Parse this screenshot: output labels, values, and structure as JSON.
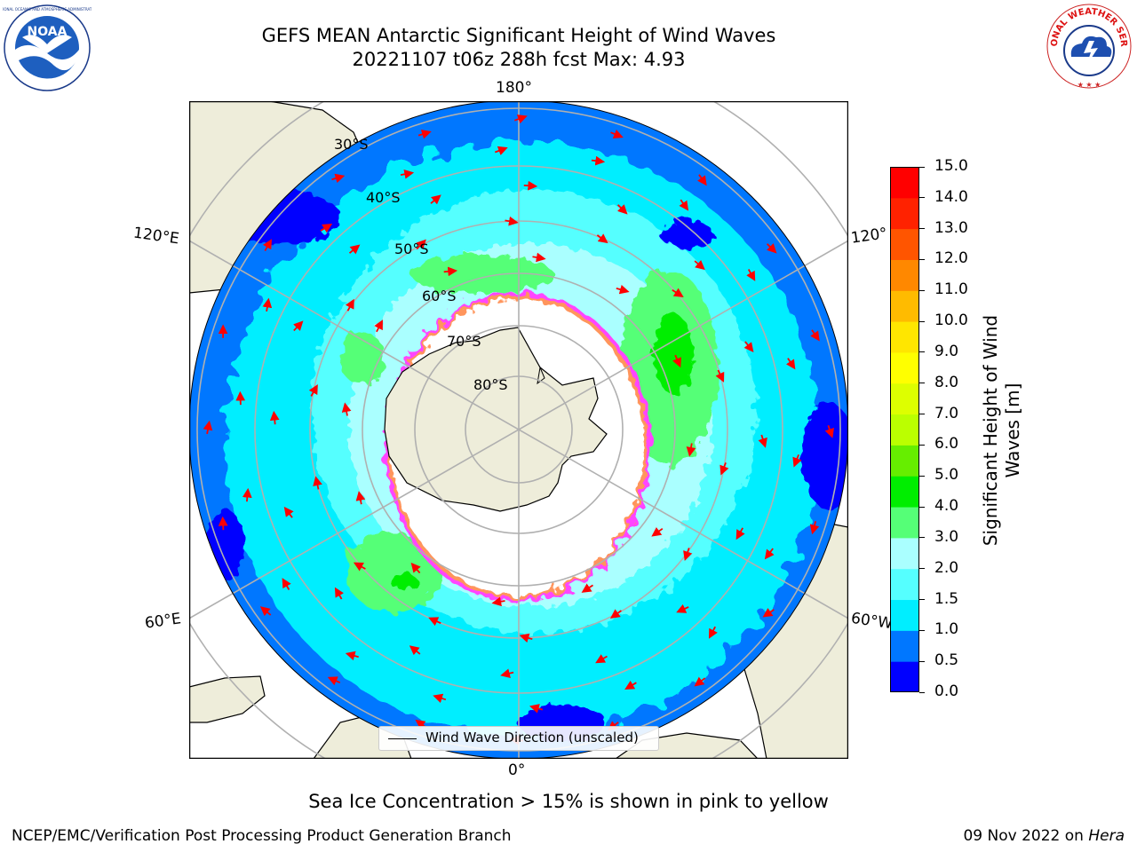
{
  "header": {
    "title_line1": "GEFS MEAN Antarctic Significant Height of Wind Waves",
    "title_line2": "20221107 t06z 288h fcst   Max: 4.93"
  },
  "logos": {
    "noaa_text": "NOAA",
    "noaa_ring_text": "NATIONAL OCEANIC AND ATMOSPHERIC ADMINISTRATION · U.S. DEPARTMENT OF COMMERCE",
    "nws_ring_text": "NATIONAL WEATHER SERVICE"
  },
  "map": {
    "longitude_labels": {
      "top": "180°",
      "bottom": "0°",
      "upper_left": "120°E",
      "lower_left": "60°E",
      "upper_right": "120°",
      "lower_right": "60°W"
    },
    "latitude_labels": [
      "30°S",
      "40°S",
      "50°S",
      "60°S",
      "70°S",
      "80°S"
    ],
    "legend_label": "Wind Wave Direction (unscaled)",
    "colors": {
      "land": "#eeedda",
      "ice": "#ffffff",
      "ice_edge_pink": "#ff44ff",
      "ice_edge_orange": "#ffaa33",
      "grid": "#b0b0b0",
      "arrow": "#ff0000"
    }
  },
  "colorbar": {
    "label": "Significant Height of Wind Waves [m]",
    "label_line1": "Significant Height of Wind",
    "label_line2": "Waves [m]",
    "ticks": [
      "0.0",
      "0.5",
      "1.0",
      "1.5",
      "2.0",
      "3.0",
      "4.0",
      "5.0",
      "6.0",
      "7.0",
      "8.0",
      "9.0",
      "10.0",
      "11.0",
      "12.0",
      "13.0",
      "14.0",
      "15.0"
    ],
    "colors": [
      "#0000ff",
      "#0077ff",
      "#00eeff",
      "#55ffff",
      "#aaffff",
      "#55ff77",
      "#00ee00",
      "#66ee00",
      "#bbff00",
      "#ddff00",
      "#ffff00",
      "#ffe600",
      "#ffbb00",
      "#ff8800",
      "#ff5500",
      "#ff2200",
      "#ff0000"
    ]
  },
  "note": "Sea Ice Concentration > 15% is shown in pink to yellow",
  "footer": {
    "left": "NCEP/EMC/Verification Post Processing Product Generation Branch",
    "right_date": "09 Nov 2022 on",
    "right_host": "Hera"
  }
}
